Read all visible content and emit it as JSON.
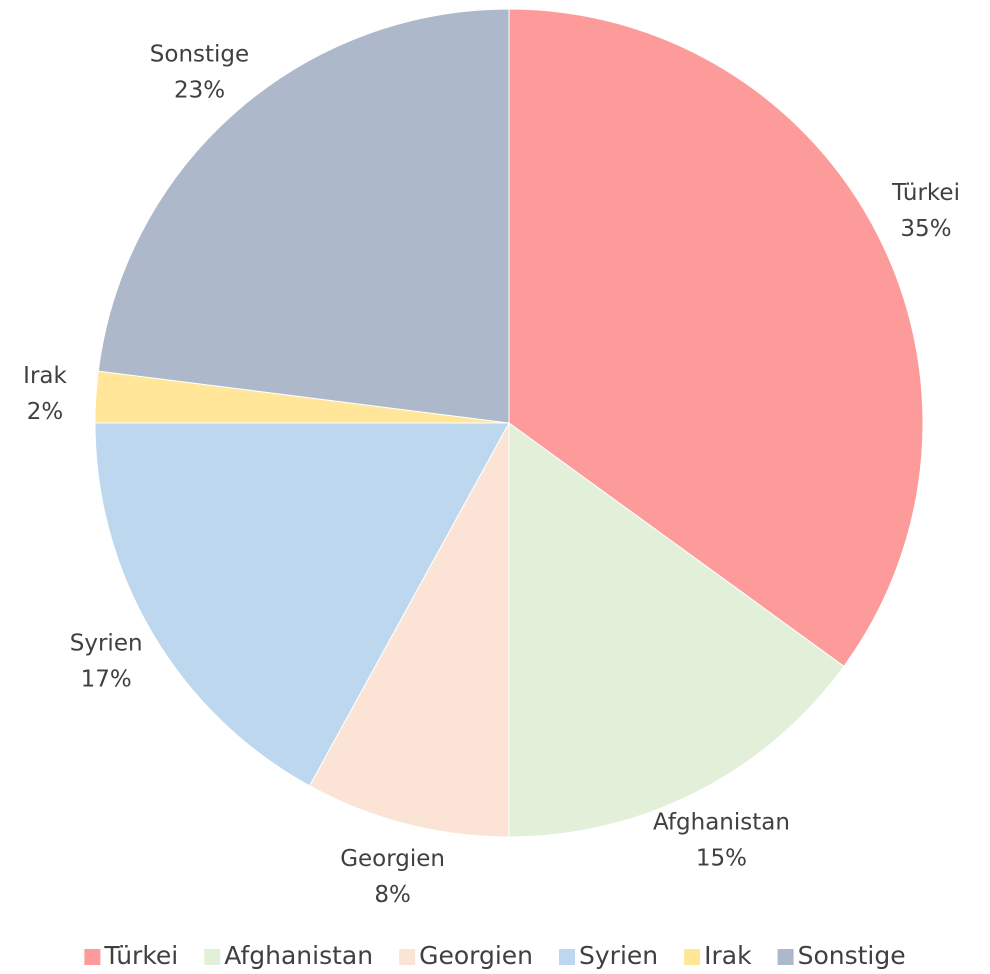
{
  "chart_data": {
    "type": "pie",
    "categories": [
      "Türkei",
      "Afghanistan",
      "Georgien",
      "Syrien",
      "Irak",
      "Sonstige"
    ],
    "values": [
      35,
      15,
      8,
      17,
      2,
      23
    ],
    "value_labels": [
      "35%",
      "15%",
      "8%",
      "17%",
      "2%",
      "23%"
    ],
    "colors": [
      "#fd9a9a",
      "#e2efd9",
      "#fbe4d5",
      "#bdd7ee",
      "#ffe699",
      "#adb9ca"
    ],
    "legend": "bottom"
  }
}
